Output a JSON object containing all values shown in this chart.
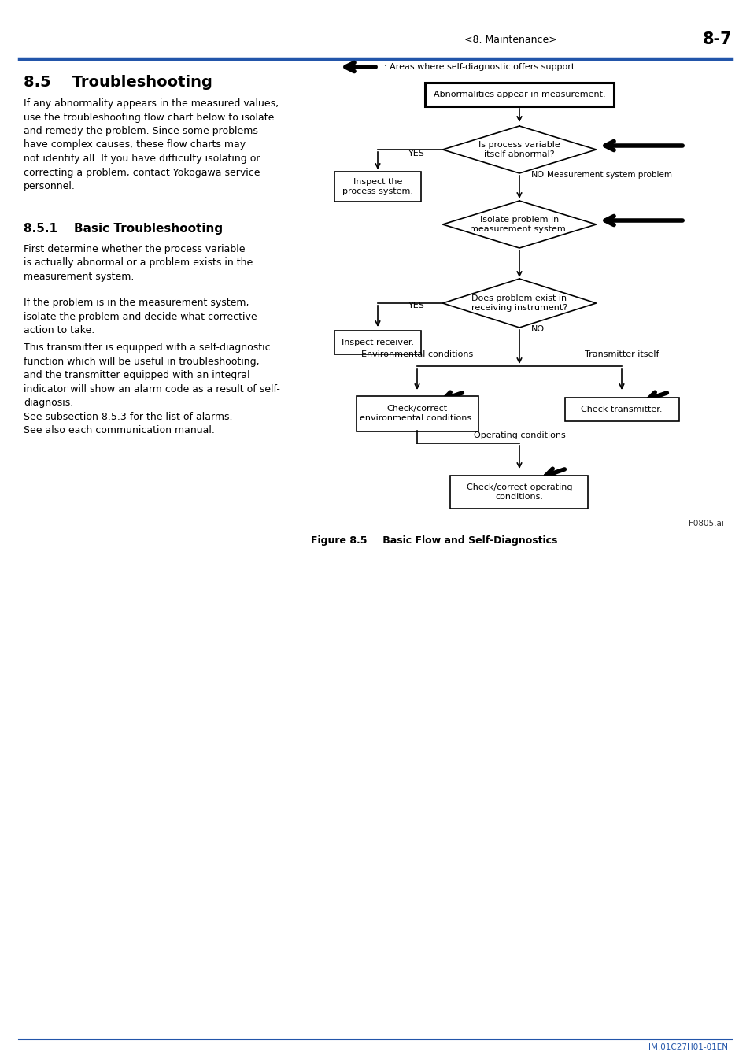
{
  "page_header_left": "<8. Maintenance>",
  "page_header_right": "8-7",
  "header_line_color": "#2255aa",
  "section_title": "8.5    Troubleshooting",
  "para1": "If any abnormality appears in the measured values,\nuse the troubleshooting flow chart below to isolate\nand remedy the problem. Since some problems\nhave complex causes, these flow charts may\nnot identify all. If you have difficulty isolating or\ncorrecting a problem, contact Yokogawa service\npersonnel.",
  "subsection_title": "8.5.1    Basic Troubleshooting",
  "para2": "First determine whether the process variable\nis actually abnormal or a problem exists in the\nmeasurement system.",
  "para3": "If the problem is in the measurement system,\nisolate the problem and decide what corrective\naction to take.",
  "para4": "This transmitter is equipped with a self-diagnostic\nfunction which will be useful in troubleshooting,\nand the transmitter equipped with an integral\nindicator will show an alarm code as a result of self-\ndiagnosis.\nSee subsection 8.5.3 for the list of alarms.\nSee also each communication manual.",
  "footer_text": "IM.01C27H01-01EN",
  "figure_caption_bold": "Figure 8.5",
  "figure_caption_rest": "      Basic Flow and Self-Diagnostics",
  "legend_text": ": Areas where self-diagnostic offers support",
  "fig_note": "F0805.ai",
  "bg_color": "#ffffff",
  "text_color": "#000000",
  "blue_color": "#2255aa"
}
